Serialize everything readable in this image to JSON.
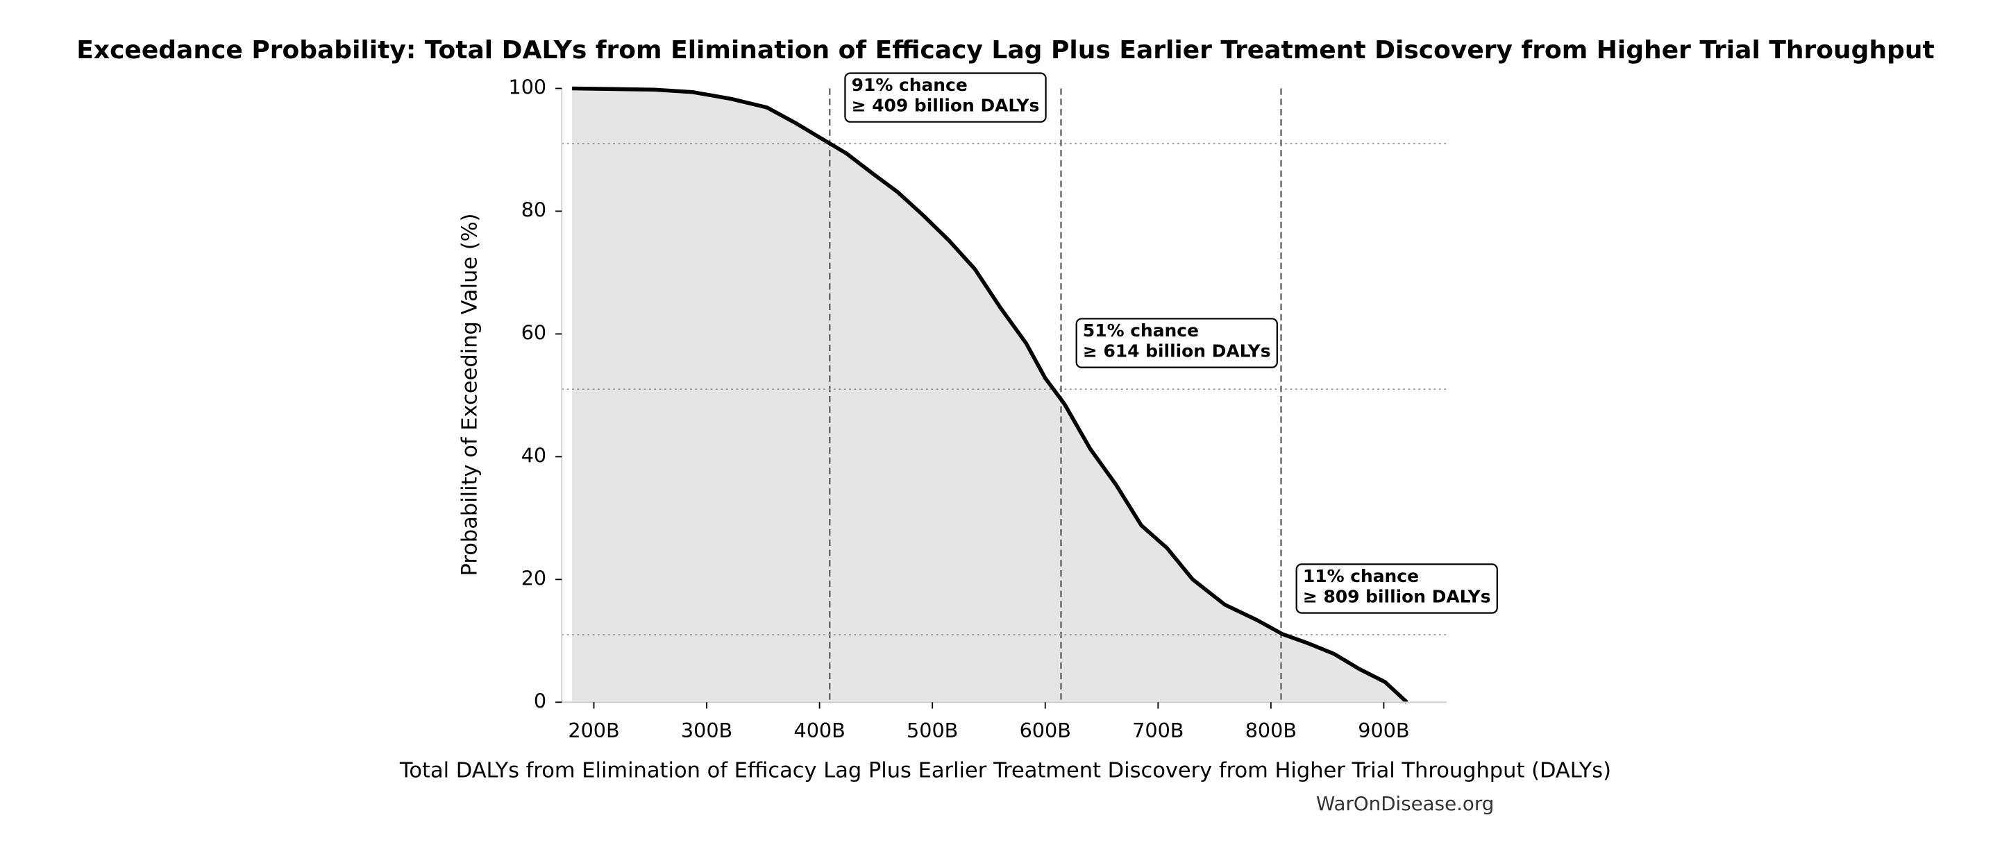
{
  "chart_data": {
    "type": "line",
    "title": "Exceedance Probability: Total DALYs from Elimination of Efficacy Lag Plus Earlier Treatment Discovery from Higher Trial Throughput",
    "xlabel": "Total DALYs from Elimination of Efficacy Lag Plus Earlier Treatment Discovery from Higher Trial Throughput (DALYs)",
    "ylabel": "Probability of Exceeding Value (%)",
    "source": "WarOnDisease.org",
    "x": [
      180700000000,
      253400000000,
      287500000000,
      321600000000,
      353400000000,
      378400000000,
      401100000000,
      423900000000,
      446600000000,
      469300000000,
      492000000000,
      514800000000,
      537500000000,
      560200000000,
      583000000000,
      600000000000,
      617000000000,
      639800000000,
      662500000000,
      685200000000,
      708000000000,
      730700000000,
      759100000000,
      787500000000,
      810200000000,
      833000000000,
      855700000000,
      878400000000,
      901100000000,
      920500000000
    ],
    "series": [
      {
        "color": "#000000",
        "fill_color": "#e5e5e5",
        "values": [
          100,
          99.8,
          99.4,
          98.3,
          96.9,
          94.4,
          91.9,
          89.4,
          86.2,
          83.1,
          79.3,
          75.2,
          70.6,
          64.3,
          58.5,
          52.8,
          48.6,
          41.3,
          35.5,
          28.8,
          25.1,
          20,
          15.9,
          13.4,
          11.1,
          9.6,
          7.9,
          5.4,
          3.3,
          0
        ]
      }
    ],
    "annotations": [
      {
        "x": 409000000000,
        "y": 91,
        "text": [
          "91% chance",
          "≥ 409 billion DALYs"
        ]
      },
      {
        "x": 614000000000,
        "y": 51,
        "text": [
          "51% chance",
          "≥ 614 billion DALYs"
        ]
      },
      {
        "x": 809000000000,
        "y": 11,
        "text": [
          "11% chance",
          "≥ 809 billion DALYs"
        ]
      }
    ],
    "xlim": [
      171600000000,
      955700000000
    ],
    "ylim": [
      0,
      100
    ],
    "xticks": [
      {
        "value": 200000000000,
        "label": "200B"
      },
      {
        "value": 300000000000,
        "label": "300B"
      },
      {
        "value": 400000000000,
        "label": "400B"
      },
      {
        "value": 500000000000,
        "label": "500B"
      },
      {
        "value": 600000000000,
        "label": "600B"
      },
      {
        "value": 700000000000,
        "label": "700B"
      },
      {
        "value": 800000000000,
        "label": "800B"
      },
      {
        "value": 900000000000,
        "label": "900B"
      }
    ],
    "yticks": [
      0,
      20,
      40,
      60,
      80,
      100
    ]
  }
}
